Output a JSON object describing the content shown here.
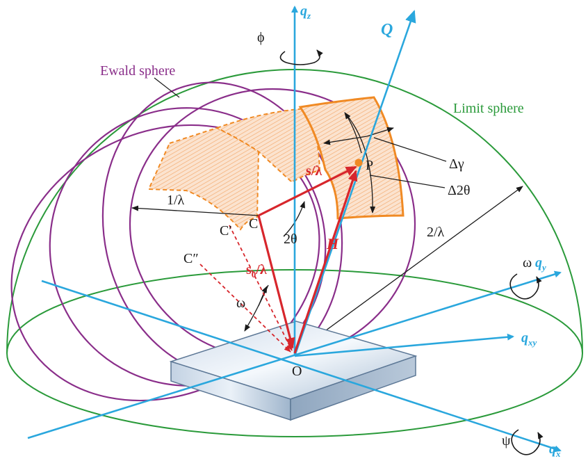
{
  "labels": {
    "qz": "q",
    "qz_sub": "z",
    "Q": "Q",
    "phi": "ϕ",
    "ewald": "Ewald sphere",
    "limit": "Limit sphere",
    "P": "P",
    "s": "s",
    "s_rest": "/λ",
    "dgamma": "Δγ",
    "d2theta": "Δ2θ",
    "inv_lambda": "1/λ",
    "C": "C",
    "C1": "C′",
    "C2": "C″",
    "two_theta": "2θ",
    "two_over_lambda": "2/λ",
    "H": "H",
    "s0": "s",
    "s0_sub": "0",
    "s0_rest": "/λ",
    "omega_left": "ω",
    "omega_right": "ω",
    "qy": "q",
    "qy_sub": "y",
    "qxy": "q",
    "qxy_sub": "xy",
    "O": "O",
    "psi": "ψ",
    "qx": "q",
    "qx_sub": "x"
  },
  "colors": {
    "green": "#2a9a3a",
    "purple": "#8a2e8a",
    "blue": "#2aa7dd",
    "red": "#d7262c",
    "orange": "#f08a24"
  }
}
